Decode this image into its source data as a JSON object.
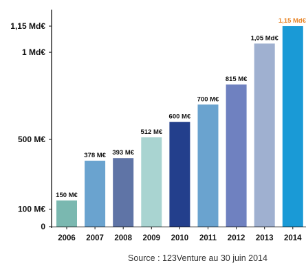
{
  "chart_data": {
    "type": "bar",
    "categories": [
      "2006",
      "2007",
      "2008",
      "2009",
      "2010",
      "2011",
      "2012",
      "2013",
      "2014"
    ],
    "values": [
      150,
      378,
      393,
      512,
      600,
      700,
      815,
      1050,
      1150
    ],
    "data_labels": [
      "150 M€",
      "378 M€",
      "393 M€",
      "512 M€",
      "600 M€",
      "700 M€",
      "815 M€",
      "1,05 Md€",
      "1,15 Md€"
    ],
    "bar_colors": [
      "#7ab8b0",
      "#6aa3cf",
      "#5f74a6",
      "#a9d4d1",
      "#233f8c",
      "#6aa3cf",
      "#6f81c0",
      "#9fb0d0",
      "#1a9ad6"
    ],
    "highlight_label_color": "#e8862a",
    "y_ticks": [
      {
        "value": 0,
        "label": "0"
      },
      {
        "value": 100,
        "label": "100 M€"
      },
      {
        "value": 500,
        "label": "500 M€"
      },
      {
        "value": 1000,
        "label": "1 Md€"
      },
      {
        "value": 1150,
        "label": "1,15 Md€"
      }
    ],
    "ylim": [
      0,
      1225
    ],
    "grid": false,
    "title": "",
    "xlabel": "",
    "ylabel": ""
  },
  "source_text": "Source : 123Venture au 30 juin 2014"
}
